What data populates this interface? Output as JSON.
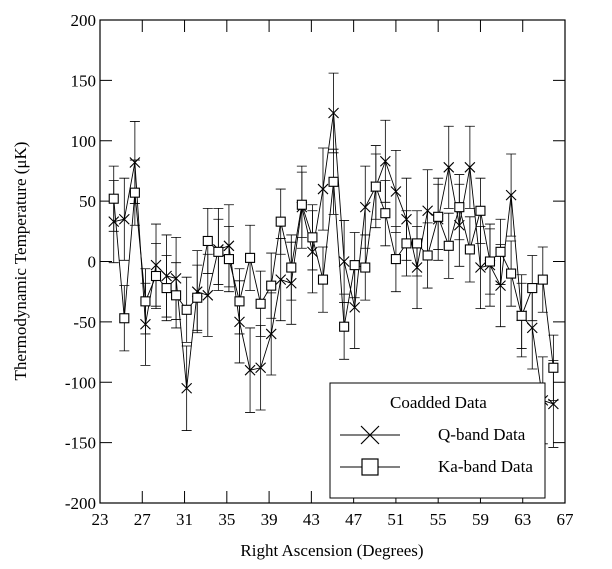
{
  "chart_data": {
    "type": "line",
    "xlabel": "Right Ascension (Degrees)",
    "ylabel": "Thermodynamic Temperature (μK)",
    "legend_title": "Coadded Data",
    "legend": "lower right",
    "xlim": [
      23,
      67
    ],
    "xticks": [
      23,
      27,
      31,
      35,
      39,
      43,
      47,
      51,
      55,
      59,
      63,
      67
    ],
    "ylim": [
      -200,
      200
    ],
    "yticks": [
      -200,
      -150,
      -100,
      -50,
      0,
      50,
      100,
      150,
      200
    ],
    "x": [
      24.3,
      25.3,
      26.3,
      27.3,
      28.3,
      29.3,
      30.2,
      31.2,
      32.2,
      33.2,
      34.2,
      35.2,
      36.2,
      37.2,
      38.2,
      39.2,
      40.1,
      41.1,
      42.1,
      43.1,
      44.1,
      45.1,
      46.1,
      47.1,
      48.1,
      49.1,
      50.0,
      51.0,
      52.0,
      53.0,
      54.0,
      55.0,
      56.0,
      57.0,
      58.0,
      59.0,
      59.9,
      60.9,
      61.9,
      62.9,
      63.9,
      64.9,
      65.9
    ],
    "series": [
      {
        "name": "Q-band Data",
        "marker": "x",
        "color": "#000000",
        "values": [
          33,
          35,
          82,
          -52,
          -3,
          -12,
          -14,
          -105,
          -25,
          -28,
          10,
          13,
          -50,
          -90,
          -88,
          -60,
          -15,
          -18,
          45,
          8,
          60,
          123,
          0,
          -38,
          45,
          62,
          83,
          58,
          35,
          -5,
          42,
          35,
          78,
          30,
          78,
          -5,
          -3,
          -20,
          55,
          -45,
          -55,
          -115,
          -118
        ],
        "errors": [
          34,
          34,
          34,
          34,
          34,
          34,
          34,
          35,
          34,
          34,
          34,
          34,
          34,
          35,
          35,
          34,
          34,
          34,
          34,
          34,
          34,
          33,
          34,
          34,
          34,
          34,
          34,
          34,
          34,
          34,
          34,
          34,
          34,
          34,
          34,
          34,
          34,
          34,
          34,
          34,
          34,
          36,
          36
        ]
      },
      {
        "name": "Ka-band Data",
        "marker": "square",
        "color": "#000000",
        "values": [
          52,
          -47,
          57,
          -33,
          -12,
          -22,
          -28,
          -40,
          -30,
          17,
          8,
          2,
          -33,
          3,
          -35,
          -20,
          33,
          -5,
          47,
          20,
          -15,
          66,
          -54,
          -3,
          -5,
          62,
          40,
          2,
          15,
          15,
          5,
          37,
          13,
          45,
          10,
          42,
          0,
          8,
          -10,
          -45,
          -22,
          -15,
          -88
        ],
        "errors": [
          27,
          27,
          27,
          27,
          27,
          27,
          27,
          27,
          27,
          27,
          27,
          27,
          27,
          27,
          27,
          27,
          27,
          27,
          27,
          27,
          27,
          27,
          27,
          27,
          27,
          27,
          27,
          27,
          27,
          27,
          27,
          27,
          27,
          27,
          27,
          27,
          27,
          27,
          27,
          27,
          27,
          27,
          27
        ]
      }
    ]
  }
}
